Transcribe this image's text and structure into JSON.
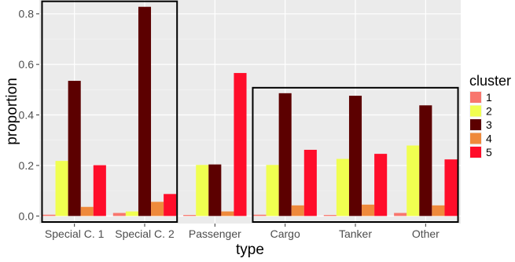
{
  "chart_data": {
    "type": "bar",
    "xlabel": "type",
    "ylabel": "proportion",
    "categories": [
      "Special C. 1",
      "Special C. 2",
      "Passenger",
      "Cargo",
      "Tanker",
      "Other"
    ],
    "ylim": [
      -0.03,
      0.855
    ],
    "yticks": [
      0.0,
      0.2,
      0.4,
      0.6,
      0.8
    ],
    "ytick_labels": [
      "0.0",
      "0.2",
      "0.4",
      "0.6",
      "0.8"
    ],
    "grid": true,
    "background": "#ebebeb",
    "legend": {
      "title": "cluster",
      "placement": "right"
    },
    "series": [
      {
        "name": "1",
        "color": "#f8766d",
        "values": [
          0.005,
          0.012,
          0.004,
          0.005,
          0.004,
          0.012
        ]
      },
      {
        "name": "2",
        "color": "#f0ff50",
        "values": [
          0.218,
          0.018,
          0.202,
          0.202,
          0.226,
          0.279
        ]
      },
      {
        "name": "3",
        "color": "#5c0000",
        "values": [
          0.535,
          0.828,
          0.204,
          0.486,
          0.476,
          0.438
        ]
      },
      {
        "name": "4",
        "color": "#ef8a3c",
        "values": [
          0.036,
          0.056,
          0.018,
          0.042,
          0.045,
          0.042
        ]
      },
      {
        "name": "5",
        "color": "#ff0d2a",
        "values": [
          0.201,
          0.087,
          0.566,
          0.262,
          0.246,
          0.224
        ]
      }
    ],
    "highlight_groups": [
      {
        "categories": [
          "Special C. 1",
          "Special C. 2"
        ]
      },
      {
        "categories": [
          "Cargo",
          "Tanker",
          "Other"
        ]
      }
    ]
  }
}
